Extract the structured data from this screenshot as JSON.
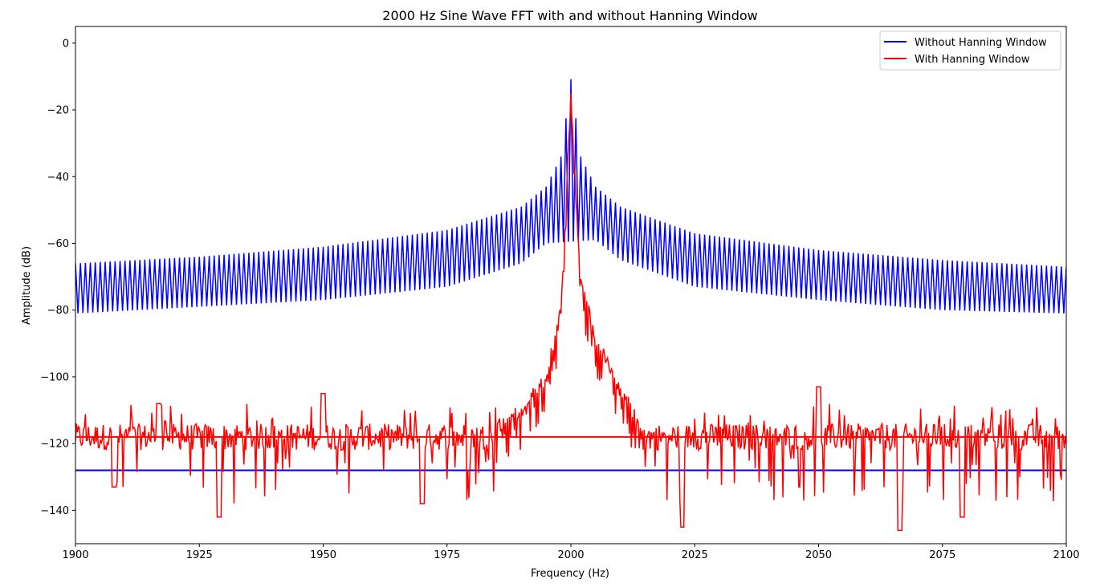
{
  "chart_data": {
    "type": "line",
    "title": "2000 Hz Sine Wave FFT with and without Hanning Window",
    "xlabel": "Frequency (Hz)",
    "ylabel": "Amplitude (dB)",
    "xlim": [
      1900,
      2100
    ],
    "ylim": [
      -150,
      5
    ],
    "xticks": [
      1900,
      1925,
      1950,
      1975,
      2000,
      2025,
      2050,
      2075,
      2100
    ],
    "yticks": [
      0,
      -20,
      -40,
      -60,
      -80,
      -100,
      -120,
      -140
    ],
    "grid": false,
    "legend_position": "top-right",
    "series": [
      {
        "name": "Without Hanning Window",
        "color": "#0000ff",
        "peak": {
          "x": 2000,
          "y": -11
        },
        "envelope_upper": {
          "x": [
            1900,
            1925,
            1950,
            1975,
            1990,
            1995,
            1998,
            2000,
            2002,
            2005,
            2010,
            2025,
            2050,
            2075,
            2100
          ],
          "y": [
            -66,
            -64,
            -61,
            -56,
            -49,
            -43,
            -34,
            -11,
            -34,
            -43,
            -49,
            -57,
            -62,
            -65,
            -67
          ]
        },
        "envelope_lower": {
          "x": [
            1900,
            1925,
            1950,
            1975,
            1990,
            1995,
            2005,
            2010,
            2025,
            2050,
            2075,
            2100
          ],
          "y": [
            -81,
            -79,
            -77,
            -73,
            -66,
            -60,
            -59,
            -65,
            -73,
            -77,
            -80,
            -81
          ]
        },
        "threshold_line": -128
      },
      {
        "name": "With Hanning Window",
        "color": "#ff0000",
        "peak": {
          "x": 2000,
          "y": -15
        },
        "envelope_upper": {
          "x": [
            1985,
            1990,
            1995,
            1998,
            2000,
            2002,
            2005,
            2010,
            2015
          ],
          "y": [
            -113,
            -108,
            -98,
            -78,
            -15,
            -70,
            -86,
            -101,
            -116
          ]
        },
        "noise_floor_mean": -118,
        "noise_extremes": [
          {
            "x": 1907.8,
            "y": -133
          },
          {
            "x": 1916.8,
            "y": -108
          },
          {
            "x": 1929.0,
            "y": -142
          },
          {
            "x": 1950.0,
            "y": -105
          },
          {
            "x": 1970.0,
            "y": -138
          },
          {
            "x": 2022.5,
            "y": -145
          },
          {
            "x": 2050.0,
            "y": -103
          },
          {
            "x": 2066.4,
            "y": -146
          },
          {
            "x": 2079.0,
            "y": -142
          }
        ],
        "threshold_line": -118
      }
    ]
  }
}
